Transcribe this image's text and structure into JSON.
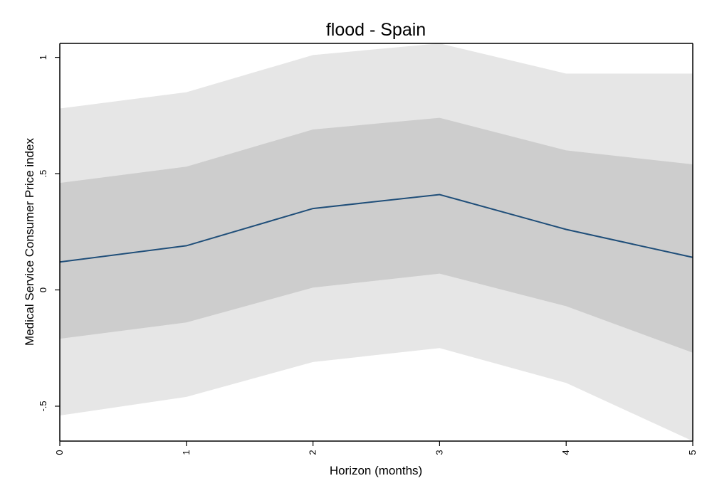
{
  "chart_data": {
    "type": "area",
    "title": "flood - Spain",
    "xlabel": "Horizon (months)",
    "ylabel": "Medical Service Consumer Price index",
    "x": [
      0,
      1,
      2,
      3,
      4,
      5
    ],
    "xlim": [
      0,
      5
    ],
    "ylim": [
      -0.65,
      1.06
    ],
    "xticks": [
      0,
      1,
      2,
      3,
      4,
      5
    ],
    "xtick_labels": [
      "0",
      "1",
      "2",
      "3",
      "4",
      "5"
    ],
    "yticks": [
      -0.5,
      0,
      0.5,
      1
    ],
    "ytick_labels": [
      "-.5",
      "0",
      ".5",
      "1"
    ],
    "grid": false,
    "legend": "none",
    "colors": {
      "line": "#1f4e79",
      "outer_band": "#e6e6e6",
      "inner_band": "#cdcdcd",
      "axis": "#000000"
    },
    "series": [
      {
        "role": "estimate",
        "values": [
          0.12,
          0.19,
          0.35,
          0.41,
          0.26,
          0.14
        ]
      },
      {
        "role": "outer_upper",
        "values": [
          0.78,
          0.85,
          1.01,
          1.06,
          0.93,
          0.93
        ]
      },
      {
        "role": "outer_lower",
        "values": [
          -0.54,
          -0.46,
          -0.31,
          -0.25,
          -0.4,
          -0.65
        ]
      },
      {
        "role": "inner_upper",
        "values": [
          0.46,
          0.53,
          0.69,
          0.74,
          0.6,
          0.54
        ]
      },
      {
        "role": "inner_lower",
        "values": [
          -0.21,
          -0.14,
          0.01,
          0.07,
          -0.07,
          -0.27
        ]
      }
    ]
  }
}
